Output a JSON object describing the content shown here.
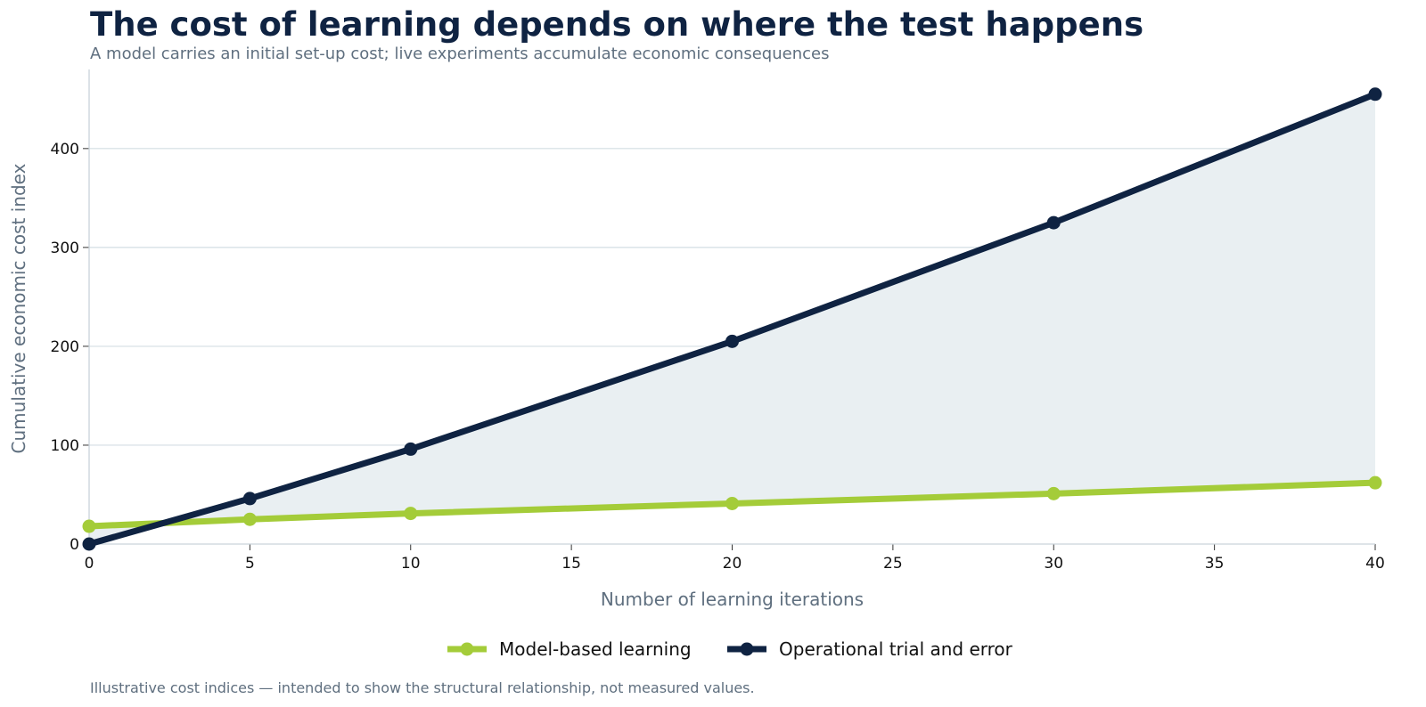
{
  "title": "The cost of learning depends on where the test happens",
  "subtitle": "A model carries an initial set-up cost; live experiments accumulate economic consequences",
  "footnote": "Illustrative cost indices — intended to show the structural relationship, not measured values.",
  "chart_data": {
    "type": "line",
    "xlabel": "Number of learning iterations",
    "ylabel": "Cumulative economic cost index",
    "xlim": [
      0,
      40
    ],
    "ylim": [
      0,
      480
    ],
    "x_ticks": [
      0,
      5,
      10,
      15,
      20,
      25,
      30,
      35,
      40
    ],
    "y_ticks": [
      0,
      100,
      200,
      300,
      400
    ],
    "grid": "horizontal",
    "legend_position": "bottom-center",
    "shaded_area_between_series": true,
    "colors": {
      "fill": "#e9eff2",
      "grid": "#d3dde3",
      "axis": "#c9d3da"
    },
    "series": [
      {
        "name": "Model-based learning",
        "color": "#a4cc39",
        "x": [
          0,
          5,
          10,
          20,
          30,
          40
        ],
        "y": [
          18,
          25,
          31,
          41,
          51,
          62
        ]
      },
      {
        "name": "Operational trial and error",
        "color": "#0f2342",
        "x": [
          0,
          5,
          10,
          20,
          30,
          40
        ],
        "y": [
          0,
          46,
          96,
          205,
          325,
          455
        ]
      }
    ]
  }
}
